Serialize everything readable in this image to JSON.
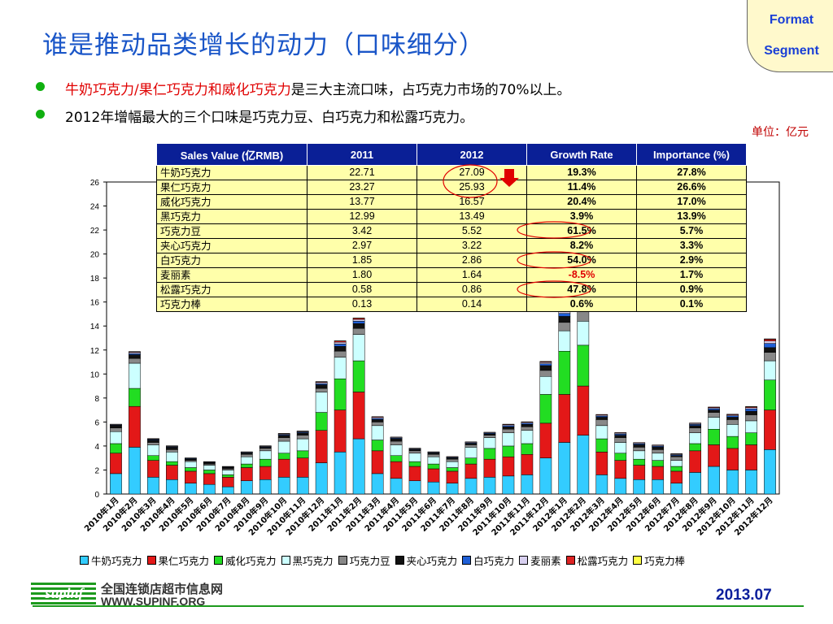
{
  "slide": {
    "title": "谁是推动品类增长的动力（口味细分）",
    "badge": [
      "Format",
      "Segment"
    ],
    "bullet1_red": "牛奶巧克力/果仁巧克力和威化巧克力",
    "bullet1_rest": "是三大主流口味，占巧克力市场的70%以上。",
    "bullet2": "2012年增幅最大的三个口味是巧克力豆、白巧克力和松露巧克力。",
    "unit": "单位：亿元",
    "logo_cn": "全国连锁店超市信息网",
    "logo_en": "WWW.SUPINF.ORG",
    "date": "2013.07"
  },
  "table": {
    "headers": [
      "Sales Value (亿RMB)",
      "2011",
      "2012",
      "Growth Rate",
      "Importance (%)"
    ],
    "rows": [
      [
        "牛奶巧克力",
        "22.71",
        "27.09",
        "19.3%",
        "27.8%"
      ],
      [
        "果仁巧克力",
        "23.27",
        "25.93",
        "11.4%",
        "26.6%"
      ],
      [
        "威化巧克力",
        "13.77",
        "16.57",
        "20.4%",
        "17.0%"
      ],
      [
        "黑巧克力",
        "12.99",
        "13.49",
        "3.9%",
        "13.9%"
      ],
      [
        "巧克力豆",
        "3.42",
        "5.52",
        "61.5%",
        "5.7%"
      ],
      [
        "夹心巧克力",
        "2.97",
        "3.22",
        "8.2%",
        "3.3%"
      ],
      [
        "白巧克力",
        "1.85",
        "2.86",
        "54.0%",
        "2.9%"
      ],
      [
        "麦丽素",
        "1.80",
        "1.64",
        "-8.5%",
        "1.7%"
      ],
      [
        "松露巧克力",
        "0.58",
        "0.86",
        "47.8%",
        "0.9%"
      ],
      [
        "巧克力棒",
        "0.13",
        "0.14",
        "0.6%",
        "0.1%"
      ]
    ],
    "negative_row": 7,
    "highlight_colors": {
      "circle": "#e00000",
      "arrow": "#e00000"
    }
  },
  "chart_data": {
    "type": "bar",
    "stacked": true,
    "ylim": [
      0,
      26
    ],
    "yticks": [
      0,
      2,
      4,
      6,
      8,
      10,
      12,
      14,
      16,
      18,
      20,
      22,
      24,
      26
    ],
    "categories": [
      "2010年1月",
      "2010年2月",
      "2010年3月",
      "2010年4月",
      "2010年5月",
      "2010年6月",
      "2010年7月",
      "2010年8月",
      "2010年9月",
      "2010年10月",
      "2010年11月",
      "2010年12月",
      "2011年1月",
      "2011年2月",
      "2011年3月",
      "2011年4月",
      "2011年5月",
      "2011年6月",
      "2011年7月",
      "2011年8月",
      "2011年9月",
      "2011年10月",
      "2011年11月",
      "2011年12月",
      "2012年1月",
      "2012年2月",
      "2012年3月",
      "2012年4月",
      "2012年5月",
      "2012年6月",
      "2012年7月",
      "2012年8月",
      "2012年9月",
      "2012年10月",
      "2012年11月",
      "2012年12月"
    ],
    "series": [
      {
        "name": "牛奶巧克力",
        "color": "#33ccff",
        "values": [
          1.7,
          3.9,
          1.4,
          1.2,
          0.9,
          0.8,
          0.6,
          1.1,
          1.2,
          1.4,
          1.4,
          2.6,
          3.5,
          4.6,
          1.7,
          1.3,
          1.1,
          1.0,
          0.9,
          1.3,
          1.4,
          1.5,
          1.6,
          3.0,
          4.3,
          4.9,
          1.6,
          1.3,
          1.2,
          1.2,
          0.9,
          1.8,
          2.3,
          2.0,
          2.0,
          3.7
        ]
      },
      {
        "name": "果仁巧克力",
        "color": "#e31818",
        "values": [
          1.7,
          3.4,
          1.4,
          1.2,
          1.0,
          0.9,
          0.8,
          1.1,
          1.1,
          1.5,
          1.6,
          2.7,
          3.5,
          3.9,
          1.9,
          1.4,
          1.2,
          1.1,
          1.0,
          1.2,
          1.5,
          1.6,
          1.7,
          2.9,
          4.0,
          4.1,
          1.9,
          1.5,
          1.2,
          1.1,
          1.0,
          1.8,
          1.8,
          1.8,
          2.1,
          3.3
        ]
      },
      {
        "name": "威化巧克力",
        "color": "#22dd22",
        "values": [
          0.8,
          1.5,
          0.4,
          0.3,
          0.3,
          0.3,
          0.2,
          0.3,
          0.6,
          0.5,
          0.6,
          1.5,
          2.6,
          2.6,
          0.9,
          0.5,
          0.4,
          0.4,
          0.3,
          0.5,
          0.9,
          0.9,
          0.9,
          2.4,
          3.6,
          3.4,
          1.1,
          0.6,
          0.5,
          0.5,
          0.4,
          0.6,
          1.3,
          1.0,
          1.0,
          2.5
        ]
      },
      {
        "name": "黑巧克力",
        "color": "#ccffff",
        "values": [
          1.0,
          2.1,
          0.9,
          0.8,
          0.5,
          0.4,
          0.4,
          0.6,
          0.7,
          1.0,
          1.0,
          1.7,
          1.8,
          2.2,
          1.2,
          0.9,
          0.7,
          0.6,
          0.5,
          0.9,
          0.9,
          1.1,
          1.1,
          1.5,
          1.7,
          2.0,
          1.1,
          0.9,
          0.7,
          0.6,
          0.5,
          0.9,
          1.0,
          1.0,
          1.0,
          1.6
        ]
      },
      {
        "name": "巧克力豆",
        "color": "#888888",
        "values": [
          0.3,
          0.4,
          0.2,
          0.2,
          0.1,
          0.1,
          0.1,
          0.2,
          0.2,
          0.3,
          0.3,
          0.3,
          0.5,
          0.5,
          0.3,
          0.3,
          0.2,
          0.2,
          0.2,
          0.2,
          0.2,
          0.3,
          0.3,
          0.5,
          0.7,
          0.8,
          0.5,
          0.4,
          0.3,
          0.3,
          0.3,
          0.4,
          0.4,
          0.4,
          0.5,
          0.7
        ]
      },
      {
        "name": "夹心巧克力",
        "color": "#111111",
        "values": [
          0.2,
          0.3,
          0.2,
          0.2,
          0.1,
          0.1,
          0.1,
          0.1,
          0.1,
          0.2,
          0.2,
          0.3,
          0.4,
          0.4,
          0.2,
          0.2,
          0.1,
          0.1,
          0.1,
          0.1,
          0.1,
          0.2,
          0.2,
          0.4,
          0.5,
          0.5,
          0.2,
          0.2,
          0.2,
          0.2,
          0.1,
          0.2,
          0.2,
          0.2,
          0.3,
          0.4
        ]
      },
      {
        "name": "白巧克力",
        "color": "#1f5fd6",
        "values": [
          0.05,
          0.1,
          0.05,
          0.05,
          0.05,
          0.04,
          0.04,
          0.05,
          0.05,
          0.06,
          0.06,
          0.1,
          0.2,
          0.2,
          0.1,
          0.06,
          0.05,
          0.05,
          0.05,
          0.06,
          0.06,
          0.1,
          0.1,
          0.15,
          0.25,
          0.3,
          0.1,
          0.1,
          0.08,
          0.08,
          0.07,
          0.1,
          0.12,
          0.12,
          0.2,
          0.35
        ]
      },
      {
        "name": "麦丽素",
        "color": "#d8d0f0",
        "values": [
          0.05,
          0.1,
          0.05,
          0.05,
          0.04,
          0.04,
          0.04,
          0.05,
          0.05,
          0.06,
          0.06,
          0.1,
          0.15,
          0.15,
          0.1,
          0.06,
          0.05,
          0.05,
          0.05,
          0.06,
          0.06,
          0.08,
          0.08,
          0.12,
          0.15,
          0.2,
          0.08,
          0.08,
          0.07,
          0.07,
          0.06,
          0.08,
          0.08,
          0.08,
          0.1,
          0.2
        ]
      },
      {
        "name": "松露巧克力",
        "color": "#dd2222",
        "values": [
          0.02,
          0.05,
          0.02,
          0.02,
          0.02,
          0.02,
          0.02,
          0.02,
          0.02,
          0.03,
          0.03,
          0.05,
          0.1,
          0.1,
          0.05,
          0.03,
          0.02,
          0.02,
          0.02,
          0.03,
          0.03,
          0.04,
          0.04,
          0.06,
          0.1,
          0.12,
          0.05,
          0.04,
          0.04,
          0.04,
          0.03,
          0.04,
          0.05,
          0.05,
          0.07,
          0.15
        ]
      },
      {
        "name": "巧克力棒",
        "color": "#ffff44",
        "values": [
          0.01,
          0.02,
          0.01,
          0.01,
          0.01,
          0.01,
          0.01,
          0.01,
          0.01,
          0.01,
          0.01,
          0.02,
          0.02,
          0.02,
          0.01,
          0.01,
          0.01,
          0.01,
          0.01,
          0.01,
          0.01,
          0.01,
          0.01,
          0.02,
          0.03,
          0.03,
          0.01,
          0.01,
          0.01,
          0.01,
          0.01,
          0.01,
          0.01,
          0.01,
          0.02,
          0.03
        ]
      }
    ]
  }
}
